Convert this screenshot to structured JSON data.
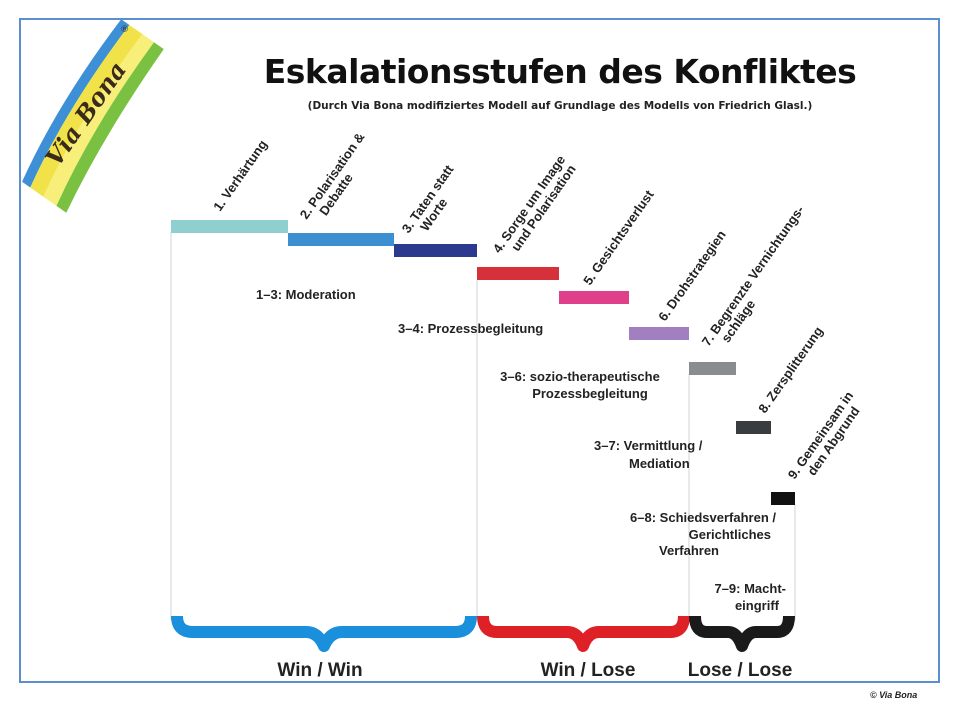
{
  "title": "Eskalationsstufen des Konfliktes",
  "subtitle": "(Durch Via Bona modifiziertes Modell auf Grundlage des Modells von Friedrich Glasl.)",
  "logo": {
    "text": "Via Bona",
    "registered": "®"
  },
  "copyright": "© Via Bona",
  "colors": {
    "frame": "#5a8fd0",
    "win_win": "#1a8fdc",
    "win_lose": "#dd2127",
    "lose_lose": "#1a1a1a"
  },
  "stages": [
    {
      "lines": [
        "1. Verhärtung"
      ],
      "color": "#8fcfcf"
    },
    {
      "lines": [
        "2. Polarisation &",
        "Debatte"
      ],
      "color": "#3c8fd0"
    },
    {
      "lines": [
        "3. Taten statt",
        "Worte"
      ],
      "color": "#2b3a8f"
    },
    {
      "lines": [
        "4. Sorge um Image",
        "und Polarisation"
      ],
      "color": "#d6303a"
    },
    {
      "lines": [
        "5. Gesichtsverlust"
      ],
      "color": "#e0408a"
    },
    {
      "lines": [
        "6. Drohstrategien"
      ],
      "color": "#a27fc0"
    },
    {
      "lines": [
        "7. Begrenzte Vernichtungs-",
        "schläge"
      ],
      "color": "#8a8d90"
    },
    {
      "lines": [
        "8. Zersplitterung"
      ],
      "color": "#3a3d40"
    },
    {
      "lines": [
        "9. Gemeinsam in",
        "den Abgrund"
      ],
      "color": "#111111"
    }
  ],
  "interventions": [
    {
      "lines": [
        "1–3: Moderation"
      ]
    },
    {
      "lines": [
        "3–4: Prozessbegleitung"
      ]
    },
    {
      "lines": [
        "3–6: sozio-therapeutische",
        "Prozessbegleitung"
      ]
    },
    {
      "lines": [
        "3–7: Vermittlung /",
        "Mediation"
      ]
    },
    {
      "lines": [
        "6–8: Schiedsverfahren /",
        "Gerichtliches",
        "Verfahren"
      ]
    },
    {
      "lines": [
        "7–9: Macht-",
        "eingriff"
      ]
    }
  ],
  "outcomes": [
    {
      "label": "Win / Win",
      "color": "#1a8fdc"
    },
    {
      "label": "Win / Lose",
      "color": "#dd2127"
    },
    {
      "label": "Lose / Lose",
      "color": "#1a1a1a"
    }
  ]
}
